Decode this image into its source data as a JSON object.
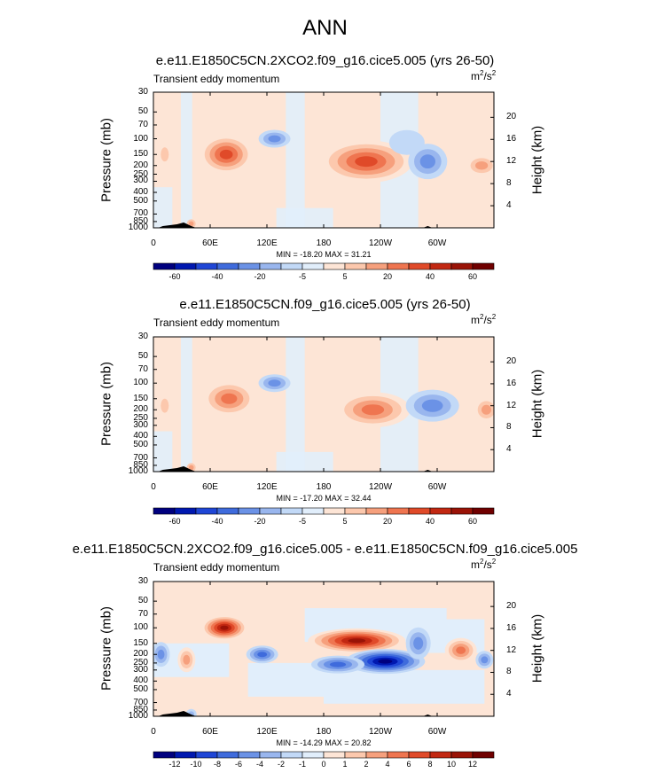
{
  "main_title": "ANN",
  "panels": [
    {
      "title": "e.e11.E1850C5CN.2XCO2.f09_g16.cice5.005 (yrs 26-50)",
      "field": "Transient eddy momentum",
      "units_base": "m",
      "units_exp1": "2",
      "units_mid": "/s",
      "units_exp2": "2",
      "ylabel": "Pressure (mb)",
      "rlabel": "Height (km)",
      "stats": "MIN = -18.20  MAX =  31.21",
      "cb_ticks": [
        "-60",
        "-40",
        "-20",
        "-5",
        "5",
        "20",
        "40",
        "60"
      ]
    },
    {
      "title": "e.e11.E1850C5CN.f09_g16.cice5.005 (yrs 26-50)",
      "field": "Transient eddy momentum",
      "units_base": "m",
      "units_exp1": "2",
      "units_mid": "/s",
      "units_exp2": "2",
      "ylabel": "Pressure (mb)",
      "rlabel": "Height (km)",
      "stats": "MIN = -17.20  MAX =  32.44",
      "cb_ticks": [
        "-60",
        "-40",
        "-20",
        "-5",
        "5",
        "20",
        "40",
        "60"
      ]
    },
    {
      "title": "e.e11.E1850C5CN.2XCO2.f09_g16.cice5.005 - e.e11.E1850C5CN.f09_g16.cice5.005",
      "field": "Transient eddy momentum",
      "units_base": "m",
      "units_exp1": "2",
      "units_mid": "/s",
      "units_exp2": "2",
      "ylabel": "Pressure (mb)",
      "rlabel": "Height (km)",
      "stats": "MIN = -14.29  MAX =  20.82",
      "cb_ticks": [
        "-12",
        "-10",
        "-8",
        "-6",
        "-4",
        "-2",
        "-1",
        "0",
        "1",
        "2",
        "4",
        "6",
        "8",
        "10",
        "12"
      ]
    }
  ],
  "pressure_ticks": [
    "30",
    "50",
    "70",
    "100",
    "150",
    "200",
    "250",
    "300",
    "400",
    "500",
    "700",
    "850",
    "1000"
  ],
  "height_ticks": [
    "20",
    "16",
    "12",
    "8",
    "4"
  ],
  "lon_ticks": [
    "0",
    "60E",
    "120E",
    "180",
    "120W",
    "60W"
  ],
  "colors": {
    "cb16": [
      "#00007f",
      "#0018b0",
      "#1f46d6",
      "#3f6bdc",
      "#6b92e6",
      "#99b6ee",
      "#c2d9f7",
      "#e1eefb",
      "#fde5d6",
      "#fcc8ad",
      "#f6a07d",
      "#ef7550",
      "#e04a29",
      "#c22812",
      "#9a1307",
      "#700000"
    ],
    "cb_diff": [
      "#00007f",
      "#0018b0",
      "#1f46d6",
      "#3f6bdc",
      "#6b92e6",
      "#99b6ee",
      "#c2d9f7",
      "#e1eefb",
      "#fde5d6",
      "#fcc8ad",
      "#f6a07d",
      "#ef7550",
      "#e04a29",
      "#c22812",
      "#9a1307",
      "#700000"
    ]
  },
  "chart_data": [
    {
      "type": "contour",
      "title": "e.e11.E1850C5CN.2XCO2.f09_g16.cice5.005 (yrs 26-50)",
      "field": "Transient eddy momentum",
      "units": "m2/s2",
      "x": "longitude 0-360",
      "y": "pressure 30-1000 mb (log)",
      "levels": [
        -60,
        -50,
        -40,
        -30,
        -20,
        -10,
        -5,
        0,
        5,
        10,
        20,
        30,
        40,
        50,
        60
      ],
      "min": -18.2,
      "max": 31.21,
      "features": [
        {
          "lon": 77,
          "p": 150,
          "value": 20
        },
        {
          "lon": 225,
          "p": 180,
          "value": 25
        },
        {
          "lon": 290,
          "p": 180,
          "value": -15
        },
        {
          "lon": 128,
          "p": 100,
          "value": -8
        },
        {
          "lon": 347,
          "p": 200,
          "value": 10
        }
      ]
    },
    {
      "type": "contour",
      "title": "e.e11.E1850C5CN.f09_g16.cice5.005 (yrs 26-50)",
      "field": "Transient eddy momentum",
      "units": "m2/s2",
      "levels": [
        -60,
        -50,
        -40,
        -30,
        -20,
        -10,
        -5,
        0,
        5,
        10,
        20,
        30,
        40,
        50,
        60
      ],
      "min": -17.2,
      "max": 32.44,
      "features": [
        {
          "lon": 80,
          "p": 150,
          "value": 20
        },
        {
          "lon": 232,
          "p": 200,
          "value": 25
        },
        {
          "lon": 295,
          "p": 180,
          "value": -15
        },
        {
          "lon": 128,
          "p": 100,
          "value": -8
        }
      ]
    },
    {
      "type": "contour",
      "title": "e.e11.E1850C5CN.2XCO2.f09_g16.cice5.005 - e.e11.E1850C5CN.f09_g16.cice5.005",
      "field": "Transient eddy momentum",
      "units": "m2/s2",
      "levels": [
        -12,
        -10,
        -8,
        -6,
        -4,
        -2,
        -1,
        0,
        1,
        2,
        4,
        6,
        8,
        10,
        12
      ],
      "min": -14.29,
      "max": 20.82,
      "features": [
        {
          "lon": 75,
          "p": 100,
          "value": 12
        },
        {
          "lon": 215,
          "p": 140,
          "value": 12
        },
        {
          "lon": 250,
          "p": 230,
          "value": -14
        },
        {
          "lon": 200,
          "p": 250,
          "value": -8
        },
        {
          "lon": 115,
          "p": 200,
          "value": -5
        },
        {
          "lon": 325,
          "p": 180,
          "value": 8
        }
      ]
    }
  ]
}
